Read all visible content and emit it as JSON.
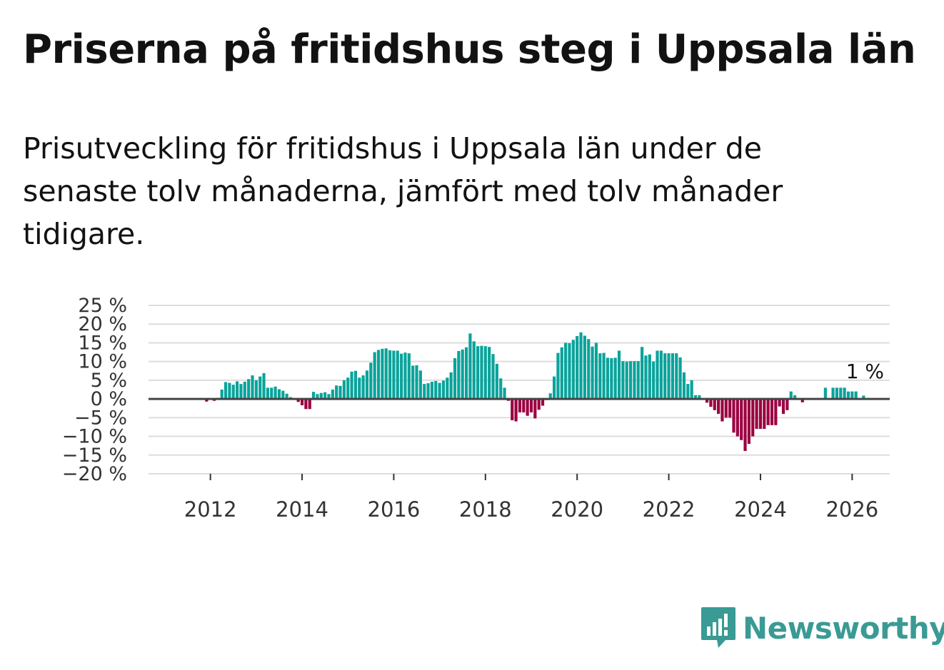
{
  "title": "Priserna på fritidshus steg i Uppsala län",
  "subtitle": "Prisutveckling för fritidshus i Uppsala län under de senaste tolv månaderna, jämfört med tolv månader tidigare.",
  "brand": "Newsworthy",
  "colors": {
    "positive": "#0aa39b",
    "negative": "#9b0040",
    "grid": "#dddddd",
    "zero": "#444444",
    "brand": "#3a9a94"
  },
  "chart_data": {
    "type": "bar",
    "title": "Priserna på fritidshus steg i Uppsala län",
    "unit": "%",
    "x_start": 2011.0,
    "x_step": 0.08333,
    "xlim": [
      2010.65,
      2026.82
    ],
    "ylim": [
      -20,
      25
    ],
    "yticks": [
      25,
      20,
      15,
      10,
      5,
      0,
      -5,
      -10,
      -15,
      -20
    ],
    "ytick_labels": [
      "25 %",
      "20 %",
      "15 %",
      "10 %",
      "5 %",
      "0 %",
      "−5 %",
      "−10 %",
      "−15 %",
      "−20 %"
    ],
    "xticks": [
      2012,
      2014,
      2016,
      2018,
      2020,
      2022,
      2024,
      2026
    ],
    "xtick_labels": [
      "2012",
      "2014",
      "2016",
      "2018",
      "2020",
      "2022",
      "2024",
      "2026"
    ],
    "values": [
      null,
      null,
      null,
      null,
      null,
      null,
      null,
      null,
      null,
      null,
      null,
      -0.7,
      -0.2,
      -0.5,
      0.3,
      2.5,
      4.5,
      4.3,
      3.8,
      4.7,
      4.0,
      4.6,
      5.3,
      6.3,
      5.0,
      6.0,
      6.9,
      3.0,
      3.0,
      3.3,
      2.6,
      2.2,
      1.4,
      0.5,
      0.2,
      -0.8,
      -1.7,
      -2.7,
      -2.7,
      1.9,
      1.3,
      1.6,
      1.8,
      1.3,
      2.5,
      3.6,
      3.5,
      5.0,
      5.7,
      7.3,
      7.5,
      5.7,
      6.3,
      7.6,
      9.7,
      12.5,
      13.1,
      13.4,
      13.5,
      13.0,
      12.9,
      12.9,
      12.1,
      12.4,
      12.2,
      8.9,
      9.0,
      7.6,
      4.0,
      4.2,
      4.6,
      4.8,
      4.3,
      4.9,
      5.7,
      7.1,
      10.9,
      12.8,
      13.2,
      13.8,
      17.5,
      15.4,
      14.1,
      14.2,
      14.1,
      13.9,
      12.0,
      9.4,
      5.5,
      3.0,
      -0.5,
      -5.7,
      -6.0,
      -3.6,
      -3.6,
      -4.5,
      -3.6,
      -5.2,
      -2.9,
      -1.8,
      -0.3,
      1.5,
      6.0,
      12.3,
      13.8,
      15.0,
      14.9,
      15.8,
      16.8,
      17.8,
      16.9,
      16.0,
      14.0,
      15.0,
      12.2,
      12.3,
      11.0,
      10.9,
      11.0,
      12.9,
      10.1,
      10.0,
      10.1,
      10.1,
      10.1,
      13.9,
      11.6,
      11.9,
      10.0,
      12.9,
      12.9,
      12.2,
      12.2,
      12.2,
      12.2,
      11.1,
      7.1,
      4.0,
      5.0,
      1.0,
      1.0,
      0.1,
      -1.0,
      -2.1,
      -3.0,
      -4.0,
      -6.0,
      -5.0,
      -5.0,
      -9.0,
      -10.0,
      -11.0,
      -13.9,
      -12.0,
      -10.0,
      -8.0,
      -8.0,
      -8.0,
      -7.0,
      -7.0,
      -7.0,
      -2.0,
      -4.0,
      -3.0,
      2.0,
      1.0,
      0.1,
      -0.9,
      0.1,
      0.1,
      0.1,
      0.1,
      0.1,
      3.0,
      0.1,
      3.0,
      3.0,
      3.0,
      3.0,
      2.0,
      2.0,
      2.0,
      0.1,
      0.9
    ],
    "annotation": {
      "text": "1 %",
      "value": 1
    }
  }
}
